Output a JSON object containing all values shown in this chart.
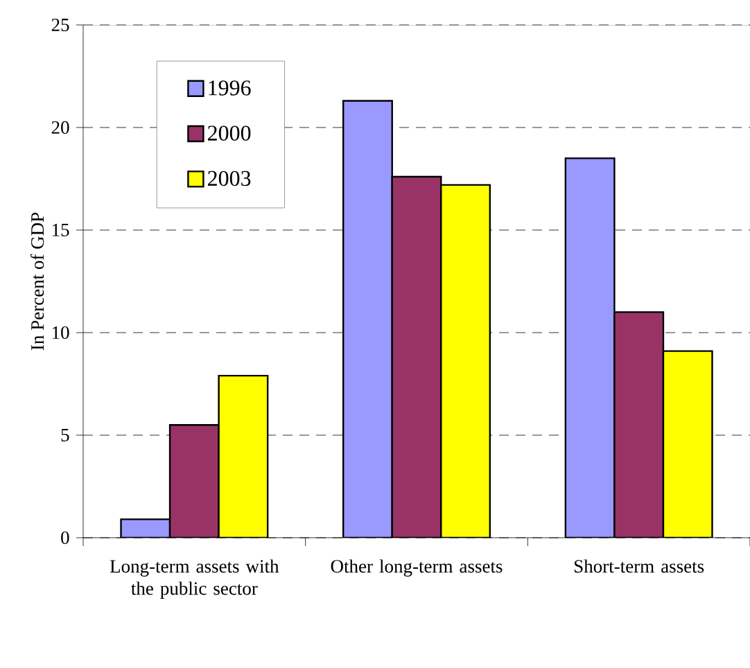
{
  "chart_data": {
    "type": "bar",
    "ylabel": "In Percent of GDP",
    "categories": [
      "Long-term assets with the public sector",
      "Other long-term assets",
      "Short-term assets"
    ],
    "series": [
      {
        "name": "1996",
        "color": "#9999ff",
        "values": [
          0.9,
          21.3,
          18.5
        ]
      },
      {
        "name": "2000",
        "color": "#993366",
        "values": [
          5.5,
          17.6,
          11.0
        ]
      },
      {
        "name": "2003",
        "color": "#ffff00",
        "values": [
          7.9,
          17.2,
          9.1
        ]
      }
    ],
    "ylim": [
      0,
      25
    ],
    "yticks": [
      0,
      5,
      10,
      15,
      20,
      25
    ],
    "grid": "y",
    "legend": "top left"
  }
}
